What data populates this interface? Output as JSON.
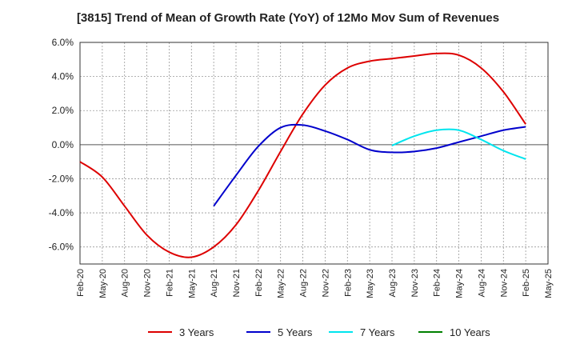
{
  "chart_data": {
    "type": "line",
    "title": "[3815]  Trend of Mean of Growth Rate (YoY) of 12Mo Mov Sum of Revenues",
    "xlabel": "",
    "ylabel": "",
    "ylim": [
      -7,
      6
    ],
    "yticks": [
      6,
      4,
      2,
      0,
      -2,
      -4,
      -6
    ],
    "ytick_labels": [
      "6.0%",
      "4.0%",
      "2.0%",
      "0.0%",
      "-2.0%",
      "-4.0%",
      "-6.0%"
    ],
    "x_categories": [
      "Feb-20",
      "May-20",
      "Aug-20",
      "Nov-20",
      "Feb-21",
      "May-21",
      "Aug-21",
      "Nov-21",
      "Feb-22",
      "May-22",
      "Aug-22",
      "Nov-22",
      "Feb-23",
      "May-23",
      "Aug-23",
      "Nov-23",
      "Feb-24",
      "May-24",
      "Aug-24",
      "Nov-24",
      "Feb-25",
      "May-25"
    ],
    "grid": true,
    "legend_position": "bottom",
    "series": [
      {
        "name": "3 Years",
        "color": "#dd0000",
        "x": [
          0,
          1,
          2,
          3,
          4,
          5,
          6,
          7,
          8,
          9,
          10,
          11,
          12,
          13,
          14,
          15,
          16,
          17,
          18,
          19,
          20
        ],
        "values": [
          -1.0,
          -1.9,
          -3.6,
          -5.3,
          -6.3,
          -6.6,
          -6.0,
          -4.7,
          -2.7,
          -0.4,
          1.8,
          3.5,
          4.5,
          4.9,
          5.05,
          5.2,
          5.35,
          5.25,
          4.5,
          3.1,
          1.2
        ]
      },
      {
        "name": "5 Years",
        "color": "#0000cc",
        "x": [
          6,
          7,
          8,
          9,
          10,
          11,
          12,
          13,
          14,
          15,
          16,
          17,
          18,
          19,
          20
        ],
        "values": [
          -3.6,
          -1.8,
          -0.1,
          1.0,
          1.15,
          0.8,
          0.3,
          -0.3,
          -0.45,
          -0.4,
          -0.2,
          0.15,
          0.5,
          0.85,
          1.05
        ]
      },
      {
        "name": "7 Years",
        "color": "#00e5ee",
        "x": [
          14,
          15,
          16,
          17,
          18,
          19,
          20
        ],
        "values": [
          -0.05,
          0.5,
          0.85,
          0.85,
          0.3,
          -0.35,
          -0.85
        ]
      },
      {
        "name": "10 Years",
        "color": "#008000",
        "x": [],
        "values": []
      }
    ]
  }
}
